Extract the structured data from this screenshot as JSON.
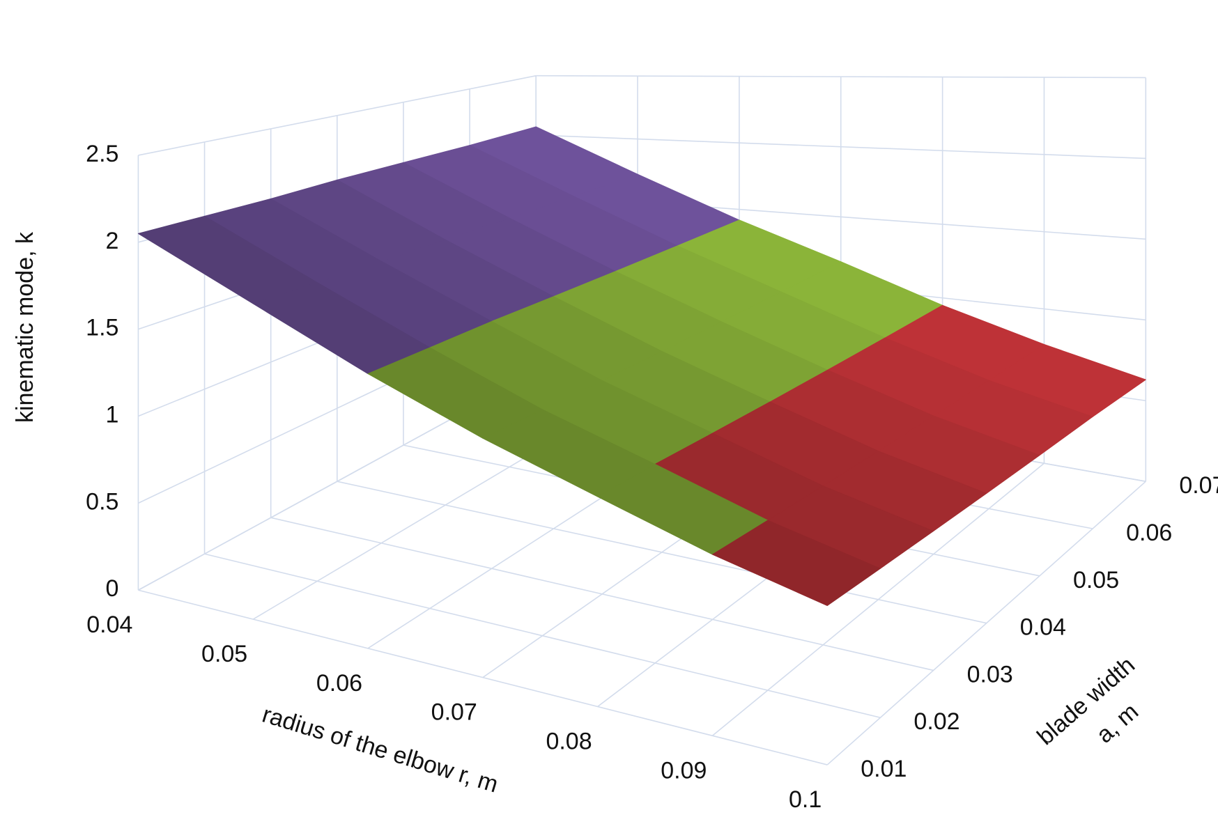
{
  "chart_data": {
    "type": "surface",
    "z_axis_label": "kinematic mode, k",
    "x_axis_label": "radius of the elbow r,  m",
    "y_axis_label": [
      "blade width",
      "a, m"
    ],
    "x": [
      0.04,
      0.05,
      0.06,
      0.07,
      0.08,
      0.09,
      0.1
    ],
    "y": [
      0.01,
      0.02,
      0.03,
      0.04,
      0.05,
      0.06,
      0.07
    ],
    "values": [
      [
        2.05,
        1.78,
        1.52,
        1.3,
        1.12,
        0.95,
        0.82
      ],
      [
        2.05,
        1.77,
        1.51,
        1.28,
        1.1,
        0.92,
        0.79
      ],
      [
        2.05,
        1.76,
        1.5,
        1.26,
        1.07,
        0.89,
        0.76
      ],
      [
        2.06,
        1.75,
        1.48,
        1.24,
        1.04,
        0.86,
        0.73
      ],
      [
        2.06,
        1.74,
        1.46,
        1.22,
        1.01,
        0.83,
        0.7
      ],
      [
        2.06,
        1.73,
        1.44,
        1.2,
        0.98,
        0.8,
        0.67
      ],
      [
        2.07,
        1.72,
        1.42,
        1.18,
        0.95,
        0.77,
        0.63
      ]
    ],
    "xlim": [
      0.04,
      0.1
    ],
    "ylim": [
      0.01,
      0.07
    ],
    "zlim": [
      0,
      2.5
    ],
    "xticks": [
      0.04,
      0.05,
      0.06,
      0.07,
      0.08,
      0.09,
      0.1
    ],
    "yticks": [
      0.01,
      0.02,
      0.03,
      0.04,
      0.05,
      0.06,
      0.07
    ],
    "zticks": [
      0,
      0.5,
      1,
      1.5,
      2,
      2.5
    ],
    "band_colors": [
      "#5b9bd5",
      "#c8353a",
      "#92bd3c",
      "#7456a3",
      "#3bb3d8"
    ],
    "grid": true
  }
}
